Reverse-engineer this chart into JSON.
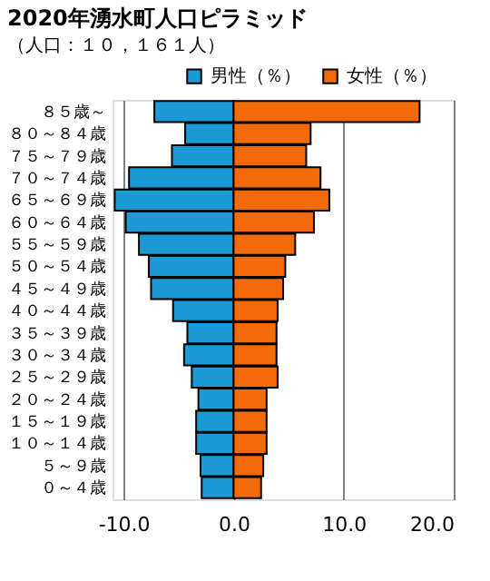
{
  "chart_data": {
    "type": "bar",
    "orientation": "horizontal",
    "stacked": true,
    "title": "2020年湧水町人口ピラミッド",
    "subtitle": "（人口：１０，１６１人）",
    "categories": [
      "８５歳～",
      "８０～８４歳",
      "７５～７９歳",
      "７０～７４歳",
      "６５～６９歳",
      "６０～６４歳",
      "５５～５９歳",
      "５０～５４歳",
      "４５～４９歳",
      "４０～４４歳",
      "３５～３９歳",
      "３０～３４歳",
      "２５～２９歳",
      "２０～２４歳",
      "１５～１９歳",
      "１０～１４歳",
      "５～９歳",
      "０～４歳"
    ],
    "series": [
      {
        "name": "男性（％）",
        "color": "#1c9ad6",
        "values": [
          -7.2,
          -4.4,
          -5.6,
          -9.5,
          -10.8,
          -9.8,
          -8.6,
          -7.7,
          -7.5,
          -5.5,
          -4.2,
          -4.5,
          -3.8,
          -3.2,
          -3.4,
          -3.4,
          -3.0,
          -2.9
        ]
      },
      {
        "name": "女性（％）",
        "color": "#f26a0a",
        "values": [
          16.9,
          7.0,
          6.6,
          7.9,
          8.7,
          7.3,
          5.6,
          4.7,
          4.5,
          4.0,
          3.9,
          3.9,
          4.0,
          3.0,
          3.0,
          3.0,
          2.7,
          2.5
        ]
      }
    ],
    "xlim": [
      -11,
      20
    ],
    "xticks": [
      {
        "value": -10,
        "label": "-10.0"
      },
      {
        "value": 0,
        "label": "0.0"
      },
      {
        "value": 10,
        "label": "10.0"
      },
      {
        "value": 20,
        "label": "20.0"
      }
    ],
    "grid": "x",
    "legend": "top right"
  }
}
